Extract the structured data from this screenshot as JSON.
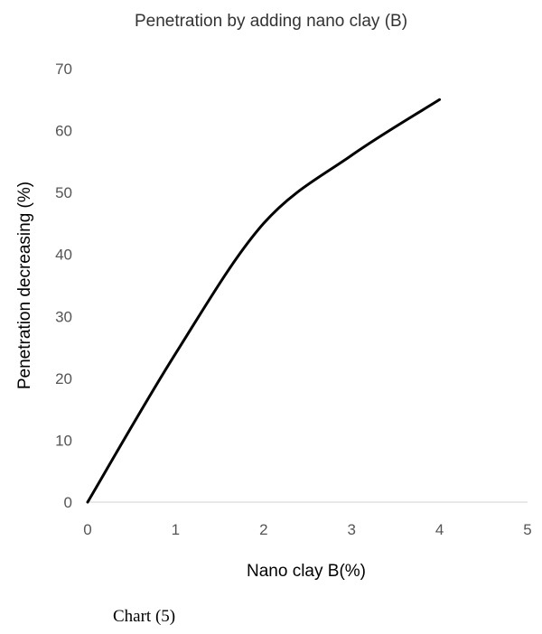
{
  "chart_data": {
    "type": "line",
    "title": "Penetration by adding nano clay (B)",
    "xlabel": "Nano clay B(%)",
    "ylabel": "Penetration decreasing (%)",
    "xlim": [
      0,
      5
    ],
    "ylim": [
      0,
      70
    ],
    "xticks": [
      "0",
      "1",
      "2",
      "3",
      "4",
      "5"
    ],
    "yticks": [
      "0",
      "10",
      "20",
      "30",
      "40",
      "50",
      "60",
      "70"
    ],
    "grid": false,
    "legend": "none",
    "series": [
      {
        "x": [
          0,
          1,
          2,
          3,
          4
        ],
        "y": [
          0,
          24,
          45,
          56,
          65
        ],
        "color": "#000000"
      }
    ]
  },
  "caption": "Chart (5)"
}
